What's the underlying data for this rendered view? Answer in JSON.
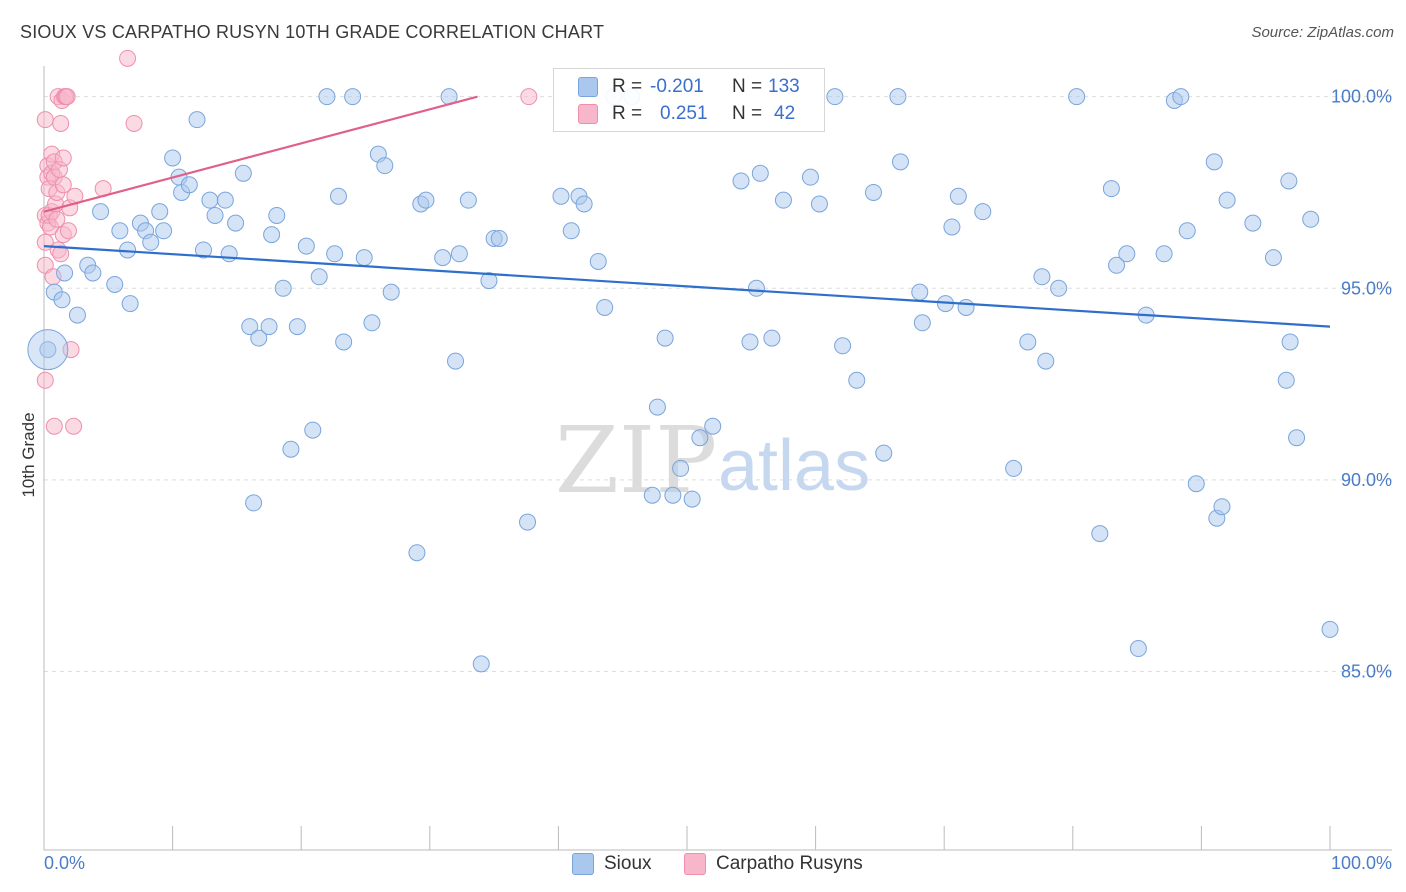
{
  "header": {
    "title": "SIOUX VS CARPATHO RUSYN 10TH GRADE CORRELATION CHART",
    "source": "Source: ZipAtlas.com"
  },
  "legend": {
    "rows": [
      {
        "r_label": "R =",
        "r_value": "-0.201",
        "n_label": "N =",
        "n_value": "133"
      },
      {
        "r_label": "R =",
        "r_value": "0.251",
        "n_label": "N =",
        "n_value": "42"
      }
    ],
    "bottom": [
      "Sioux",
      "Carpatho Rusyns"
    ]
  },
  "watermark": {
    "zip": "ZIP",
    "atlas": "atlas"
  },
  "colors": {
    "sioux_fill": "#aac8ee",
    "sioux_stroke": "#7aa5dc",
    "sioux_line": "#2f6fcc",
    "rusyn_fill": "#f7b6c9",
    "rusyn_stroke": "#ee8fae",
    "rusyn_line": "#e0608a",
    "tick_text": "#4a7cc8",
    "grid": "#dddddd"
  },
  "chart_data": {
    "type": "scatter",
    "title": "SIOUX VS CARPATHO RUSYN 10TH GRADE CORRELATION CHART",
    "xlabel": "",
    "ylabel": "10th Grade",
    "xlim": [
      0,
      100
    ],
    "ylim": [
      80.5,
      100.8
    ],
    "x_tick_labels": [
      "0.0%",
      "100.0%"
    ],
    "y_ticks": [
      85,
      90,
      95,
      100
    ],
    "y_tick_labels": [
      "85.0%",
      "90.0%",
      "95.0%",
      "100.0%"
    ],
    "grid": true,
    "legend_position": "top-center",
    "series": [
      {
        "name": "Sioux",
        "R": -0.201,
        "N": 133,
        "trend": {
          "x": [
            0,
            100
          ],
          "y": [
            96.1,
            94.0
          ]
        },
        "points": [
          [
            0.3,
            93.4
          ],
          [
            0.8,
            94.9
          ],
          [
            1.4,
            94.7
          ],
          [
            1.6,
            95.4
          ],
          [
            2.6,
            94.3
          ],
          [
            3.4,
            95.6
          ],
          [
            3.8,
            95.4
          ],
          [
            4.4,
            97.0
          ],
          [
            5.5,
            95.1
          ],
          [
            5.9,
            96.5
          ],
          [
            6.5,
            96.0
          ],
          [
            6.7,
            94.6
          ],
          [
            7.5,
            96.7
          ],
          [
            7.9,
            96.5
          ],
          [
            8.3,
            96.2
          ],
          [
            9.0,
            97.0
          ],
          [
            9.3,
            96.5
          ],
          [
            10.0,
            98.4
          ],
          [
            10.5,
            97.9
          ],
          [
            10.7,
            97.5
          ],
          [
            11.3,
            97.7
          ],
          [
            11.9,
            99.4
          ],
          [
            12.4,
            96.0
          ],
          [
            12.9,
            97.3
          ],
          [
            13.3,
            96.9
          ],
          [
            14.1,
            97.3
          ],
          [
            14.4,
            95.9
          ],
          [
            14.9,
            96.7
          ],
          [
            15.5,
            98.0
          ],
          [
            16.0,
            94.0
          ],
          [
            16.3,
            89.4
          ],
          [
            16.7,
            93.7
          ],
          [
            17.5,
            94.0
          ],
          [
            17.7,
            96.4
          ],
          [
            18.1,
            96.9
          ],
          [
            18.6,
            95.0
          ],
          [
            19.2,
            90.8
          ],
          [
            19.7,
            94.0
          ],
          [
            20.4,
            96.1
          ],
          [
            20.9,
            91.3
          ],
          [
            21.4,
            95.3
          ],
          [
            22.0,
            100.0
          ],
          [
            22.6,
            95.9
          ],
          [
            22.9,
            97.4
          ],
          [
            23.3,
            93.6
          ],
          [
            24.0,
            100.0
          ],
          [
            24.9,
            95.8
          ],
          [
            25.5,
            94.1
          ],
          [
            26.0,
            98.5
          ],
          [
            26.5,
            98.2
          ],
          [
            27.0,
            94.9
          ],
          [
            29.0,
            88.1
          ],
          [
            29.3,
            97.2
          ],
          [
            29.7,
            97.3
          ],
          [
            31.0,
            95.8
          ],
          [
            31.5,
            100.0
          ],
          [
            32.0,
            93.1
          ],
          [
            32.3,
            95.9
          ],
          [
            33.0,
            97.3
          ],
          [
            34.0,
            85.2
          ],
          [
            34.6,
            95.2
          ],
          [
            35.0,
            96.3
          ],
          [
            35.4,
            96.3
          ],
          [
            37.6,
            88.9
          ],
          [
            40.2,
            97.4
          ],
          [
            41.0,
            96.5
          ],
          [
            41.6,
            97.4
          ],
          [
            42.0,
            97.2
          ],
          [
            43.1,
            95.7
          ],
          [
            43.6,
            94.5
          ],
          [
            44.3,
            100.0
          ],
          [
            45.7,
            100.0
          ],
          [
            47.3,
            89.6
          ],
          [
            47.7,
            91.9
          ],
          [
            48.3,
            93.7
          ],
          [
            48.9,
            89.6
          ],
          [
            49.5,
            90.3
          ],
          [
            50.4,
            89.5
          ],
          [
            51.0,
            91.1
          ],
          [
            52.0,
            91.4
          ],
          [
            54.2,
            97.8
          ],
          [
            54.9,
            93.6
          ],
          [
            55.4,
            95.0
          ],
          [
            55.7,
            98.0
          ],
          [
            56.6,
            93.7
          ],
          [
            57.5,
            97.3
          ],
          [
            59.6,
            97.9
          ],
          [
            60.3,
            97.2
          ],
          [
            61.5,
            100.0
          ],
          [
            62.1,
            93.5
          ],
          [
            63.2,
            92.6
          ],
          [
            64.5,
            97.5
          ],
          [
            65.3,
            90.7
          ],
          [
            66.4,
            100.0
          ],
          [
            66.6,
            98.3
          ],
          [
            68.1,
            94.9
          ],
          [
            68.3,
            94.1
          ],
          [
            70.1,
            94.6
          ],
          [
            70.6,
            96.6
          ],
          [
            71.1,
            97.4
          ],
          [
            71.7,
            94.5
          ],
          [
            73.0,
            97.0
          ],
          [
            75.4,
            90.3
          ],
          [
            76.5,
            93.6
          ],
          [
            77.6,
            95.3
          ],
          [
            77.9,
            93.1
          ],
          [
            78.9,
            95.0
          ],
          [
            80.3,
            100.0
          ],
          [
            82.1,
            88.6
          ],
          [
            83.0,
            97.6
          ],
          [
            83.4,
            95.6
          ],
          [
            84.2,
            95.9
          ],
          [
            85.1,
            85.6
          ],
          [
            85.7,
            94.3
          ],
          [
            87.1,
            95.9
          ],
          [
            87.9,
            99.9
          ],
          [
            88.4,
            100.0
          ],
          [
            88.9,
            96.5
          ],
          [
            89.6,
            89.9
          ],
          [
            91.0,
            98.3
          ],
          [
            91.2,
            89.0
          ],
          [
            91.6,
            89.3
          ],
          [
            92.0,
            97.3
          ],
          [
            94.0,
            96.7
          ],
          [
            95.6,
            95.8
          ],
          [
            96.8,
            97.8
          ],
          [
            96.6,
            92.6
          ],
          [
            96.9,
            93.6
          ],
          [
            97.4,
            91.1
          ],
          [
            98.5,
            96.8
          ],
          [
            100.0,
            86.1
          ]
        ]
      },
      {
        "name": "Carpatho Rusyns",
        "R": 0.251,
        "N": 42,
        "trend": {
          "x": [
            0,
            33.7
          ],
          "y": [
            97.0,
            100.0
          ]
        },
        "points": [
          [
            0.1,
            99.4
          ],
          [
            0.1,
            96.9
          ],
          [
            0.1,
            96.2
          ],
          [
            0.1,
            95.6
          ],
          [
            0.1,
            92.6
          ],
          [
            0.3,
            98.2
          ],
          [
            0.3,
            97.9
          ],
          [
            0.3,
            96.7
          ],
          [
            0.4,
            97.6
          ],
          [
            0.4,
            96.9
          ],
          [
            0.5,
            96.6
          ],
          [
            0.6,
            98.5
          ],
          [
            0.6,
            98.0
          ],
          [
            0.6,
            97.0
          ],
          [
            0.7,
            95.3
          ],
          [
            0.8,
            98.3
          ],
          [
            0.8,
            97.9
          ],
          [
            0.8,
            91.4
          ],
          [
            0.9,
            97.2
          ],
          [
            1.0,
            97.5
          ],
          [
            1.0,
            96.8
          ],
          [
            1.1,
            100.0
          ],
          [
            1.1,
            96.0
          ],
          [
            1.2,
            98.1
          ],
          [
            1.3,
            99.3
          ],
          [
            1.3,
            95.9
          ],
          [
            1.4,
            99.9
          ],
          [
            1.5,
            98.4
          ],
          [
            1.5,
            97.7
          ],
          [
            1.5,
            96.4
          ],
          [
            1.6,
            100.0
          ],
          [
            1.7,
            100.0
          ],
          [
            1.8,
            100.0
          ],
          [
            1.9,
            96.5
          ],
          [
            2.0,
            97.1
          ],
          [
            2.1,
            93.4
          ],
          [
            2.3,
            91.4
          ],
          [
            2.4,
            97.4
          ],
          [
            4.6,
            97.6
          ],
          [
            7.0,
            99.3
          ],
          [
            37.7,
            100.0
          ],
          [
            6.5,
            101.0
          ]
        ]
      }
    ]
  }
}
